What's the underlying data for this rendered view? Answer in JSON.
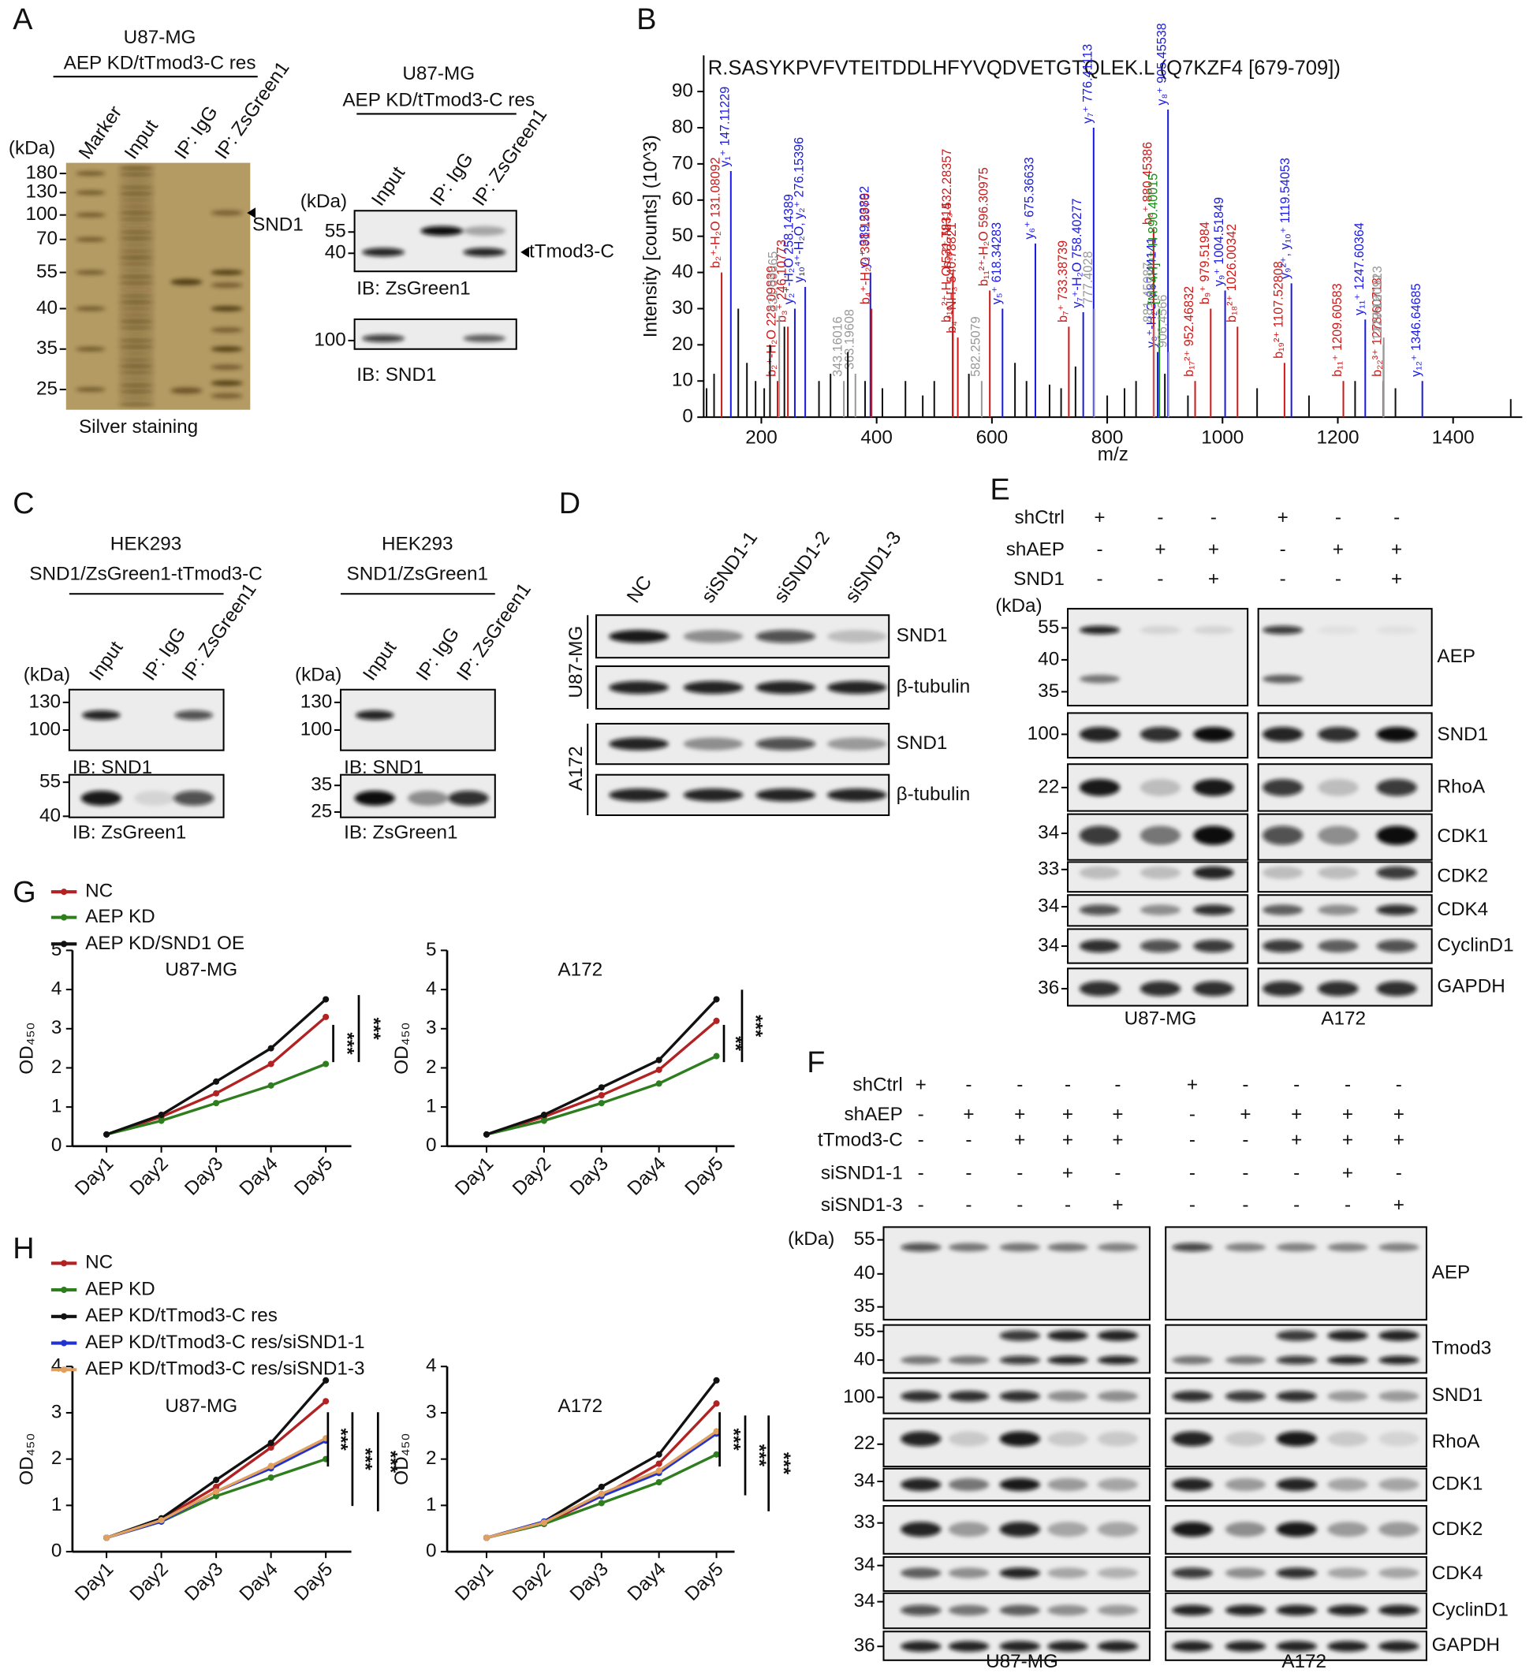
{
  "panels": {
    "A": {
      "label": "A",
      "silver": {
        "cell_line": "U87-MG",
        "condition": "AEP KD/tTmod3-C res",
        "lanes": [
          "Marker",
          "Input",
          "IP: IgG",
          "IP: ZsGreen1"
        ],
        "unit": "(kDa)",
        "markers": [
          180,
          130,
          100,
          70,
          55,
          40,
          35,
          25
        ],
        "band": "SND1",
        "caption": "Silver staining"
      },
      "blot": {
        "cell_line": "U87-MG",
        "condition": "AEP KD/tTmod3-C res",
        "lanes": [
          "Input",
          "IP: IgG",
          "IP: ZsGreen1"
        ],
        "unit": "(kDa)",
        "blots": [
          {
            "markers": [
              55,
              40
            ],
            "band": "tTmod3-C",
            "ib": "IB: ZsGreen1"
          },
          {
            "markers": [
              100
            ],
            "ib": "IB: SND1"
          }
        ]
      }
    },
    "B": {
      "label": "B"
    },
    "C": {
      "label": "C",
      "left": {
        "cell_line": "HEK293",
        "condition": "SND1/ZsGreen1-tTmod3-C",
        "lanes": [
          "Input",
          "IP: IgG",
          "IP: ZsGreen1"
        ],
        "unit": "(kDa)",
        "blots": [
          {
            "markers": [
              130,
              100
            ],
            "ib": "IB: SND1"
          },
          {
            "markers": [
              55,
              40
            ],
            "ib": "IB: ZsGreen1"
          }
        ]
      },
      "right": {
        "cell_line": "HEK293",
        "condition": "SND1/ZsGreen1",
        "lanes": [
          "Input",
          "IP: IgG",
          "IP: ZsGreen1"
        ],
        "unit": "(kDa)",
        "blots": [
          {
            "markers": [
              130,
              100
            ],
            "ib": "IB: SND1"
          },
          {
            "markers": [
              35,
              25
            ],
            "ib": "IB: ZsGreen1"
          }
        ]
      }
    },
    "D": {
      "label": "D",
      "lanes": [
        "NC",
        "siSND1-1",
        "siSND1-2",
        "siSND1-3"
      ],
      "cell_lines": [
        "U87-MG",
        "A172"
      ],
      "rows": [
        "SND1",
        "β-tubulin",
        "SND1",
        "β-tubulin"
      ]
    },
    "E": {
      "label": "E",
      "conditions": [
        {
          "name": "shCtrl",
          "signs": [
            "+",
            "-",
            "-",
            "+",
            "-",
            "-"
          ]
        },
        {
          "name": "shAEP",
          "signs": [
            "-",
            "+",
            "+",
            "-",
            "+",
            "+"
          ]
        },
        {
          "name": "SND1",
          "signs": [
            "-",
            "-",
            "+",
            "-",
            "-",
            "+"
          ]
        }
      ],
      "unit": "(kDa)",
      "rows": [
        {
          "name": "AEP",
          "markers": [
            55,
            40,
            35
          ]
        },
        {
          "name": "SND1",
          "markers": [
            100
          ]
        },
        {
          "name": "RhoA",
          "markers": [
            22
          ]
        },
        {
          "name": "CDK1",
          "markers": [
            34
          ]
        },
        {
          "name": "CDK2",
          "markers": [
            33
          ]
        },
        {
          "name": "CDK4",
          "markers": [
            34
          ]
        },
        {
          "name": "CyclinD1",
          "markers": [
            34
          ]
        },
        {
          "name": "GAPDH",
          "markers": [
            36
          ]
        }
      ],
      "cell_lines": [
        "U87-MG",
        "A172"
      ]
    },
    "F": {
      "label": "F",
      "conditions": [
        {
          "name": "shCtrl",
          "signs": [
            "+",
            "-",
            "-",
            "-",
            "-",
            "+",
            "-",
            "-",
            "-",
            "-"
          ]
        },
        {
          "name": "shAEP",
          "signs": [
            "-",
            "+",
            "+",
            "+",
            "+",
            "-",
            "+",
            "+",
            "+",
            "+"
          ]
        },
        {
          "name": "tTmod3-C",
          "signs": [
            "-",
            "-",
            "+",
            "+",
            "+",
            "-",
            "-",
            "+",
            "+",
            "+"
          ]
        },
        {
          "name": "siSND1-1",
          "signs": [
            "-",
            "-",
            "-",
            "+",
            "-",
            "-",
            "-",
            "-",
            "+",
            "-"
          ]
        },
        {
          "name": "siSND1-3",
          "signs": [
            "-",
            "-",
            "-",
            "-",
            "+",
            "-",
            "-",
            "-",
            "-",
            "+"
          ]
        }
      ],
      "unit": "(kDa)",
      "rows": [
        {
          "name": "AEP",
          "markers": [
            55,
            40,
            35
          ]
        },
        {
          "name": "Tmod3",
          "markers": [
            55,
            40
          ]
        },
        {
          "name": "SND1",
          "markers": [
            100
          ]
        },
        {
          "name": "RhoA",
          "markers": [
            22
          ]
        },
        {
          "name": "CDK1",
          "markers": [
            34
          ]
        },
        {
          "name": "CDK2",
          "markers": [
            33
          ]
        },
        {
          "name": "CDK4",
          "markers": [
            34
          ]
        },
        {
          "name": "CyclinD1",
          "markers": [
            34
          ]
        },
        {
          "name": "GAPDH",
          "markers": [
            36
          ]
        }
      ],
      "cell_lines": [
        "U87-MG",
        "A172"
      ]
    },
    "G": {
      "label": "G"
    },
    "H": {
      "label": "H"
    }
  },
  "chart_data": [
    {
      "type": "stem",
      "title": "R.SASYKPVFVTEITDDLHFYVQDVETGTQLEK.L (Q7KZF4 [679-709])",
      "x_label": "m/z",
      "y_label": "Intensity [counts] (10^3)",
      "xlim": [
        100,
        1520
      ],
      "xticks": [
        200,
        400,
        600,
        800,
        1000,
        1200,
        1400
      ],
      "ylim": [
        0,
        100
      ],
      "yticks": [
        0,
        10,
        20,
        30,
        40,
        50,
        60,
        70,
        80,
        90
      ],
      "series": [
        {
          "color": "#1a1ae0",
          "x": [
            147.11,
            258.14,
            276.15,
            389.24,
            618.34,
            675.37,
            758.4,
            776.41,
            887.44,
            905.46,
            1004.52,
            1119.54,
            1247.6,
            1346.65
          ],
          "values": [
            68,
            30,
            36,
            40,
            30,
            48,
            29,
            80,
            18,
            85,
            35,
            37,
            27,
            10
          ],
          "labels": [
            "y₁⁺ 147.11229",
            "y₂⁺-H₂O 258.14389",
            "y₁₀⁴⁺-H₂O, y₂⁺ 276.15396",
            "y₃⁺ 389.23892",
            "y₅⁺ 618.34283",
            "y₆⁺ 675.36633",
            "y₇⁺-H₂O 758.40277",
            "y₇⁺ 776.41113",
            "y₈⁺-H₂O 887.44141",
            "y₈⁺ 905.45538",
            "y₉⁺ 1004.51849",
            "y₉²⁺, y₁₀⁺ 1119.54053",
            "y₁₁⁺ 1247.60364",
            "y₁₂⁺ 1346.64685"
          ]
        },
        {
          "color": "#cc1a1a",
          "x": [
            131.08,
            228.1,
            246.1,
            391.16,
            531.78,
            532.28,
            540.78,
            596.31,
            733.39,
            880.45,
            952.47,
            979.52,
            1026,
            1107.53,
            1209.61,
            1278.61
          ],
          "values": [
            40,
            10,
            25,
            30,
            25,
            40,
            22,
            35,
            25,
            52,
            10,
            30,
            25,
            15,
            10,
            10
          ],
          "labels": [
            "b₂⁺-H₂O 131.08092",
            "b₂⁺-H₂O 228.09839",
            "b₃⁺ 246.10773",
            "b₄⁺-H₂O 391.15976",
            "b₁₀²⁺-H₂O 531.78314",
            "b₁₀²⁺-NH₃ 532.28357",
            "b₄⁺-NH₃ 540.78821",
            "b₁₁²⁺-H₂O 596.30975",
            "b₇⁺ 733.38739",
            "b₈⁺ 880.45386",
            "b₁₇²⁺ 952.46832",
            "b₉⁺ 979.51984",
            "b₁₈²⁺ 1026.00342",
            "b₁₉²⁺ 1107.52808",
            "b₁₁⁺ 1209.60583",
            "b₂₂³⁺ 1278.60718"
          ]
        },
        {
          "color": "#1a8a1a",
          "x": [
            890.4
          ],
          "values": [
            30
          ],
          "labels": [
            "[M+4H]⁴⁺-H 890.40015"
          ]
        },
        {
          "color": "#999999",
          "x": [
            231.1,
            343.16,
            363.2,
            582.25,
            777.4,
            881.45,
            906.46,
            1279.12,
            1279.61
          ],
          "values": [
            28,
            10,
            12,
            10,
            30,
            25,
            18,
            20,
            22
          ],
          "labels": [
            "231.09665",
            "343.16016",
            "363.19608",
            "582.25079",
            "777.4028",
            "881.45087",
            "906.4566",
            "1279.12012",
            "1279.60913"
          ]
        },
        {
          "color": "#111111",
          "x": [
            105,
            118,
            160,
            175,
            190,
            205,
            215,
            240,
            300,
            320,
            350,
            380,
            410,
            450,
            480,
            500,
            560,
            640,
            660,
            700,
            720,
            745,
            800,
            830,
            850,
            900,
            940,
            1060,
            1150,
            1230,
            1300,
            1500
          ],
          "values": [
            8,
            12,
            30,
            15,
            10,
            8,
            20,
            25,
            10,
            12,
            18,
            10,
            8,
            10,
            6,
            10,
            12,
            15,
            10,
            9,
            8,
            14,
            6,
            8,
            10,
            12,
            6,
            8,
            6,
            10,
            8,
            5
          ]
        }
      ]
    },
    {
      "type": "line",
      "title": "U87-MG",
      "y_label": "OD₄₅₀",
      "categories": [
        "Day1",
        "Day2",
        "Day3",
        "Day4",
        "Day5"
      ],
      "ylim": [
        0,
        5
      ],
      "yticks": [
        0,
        1,
        2,
        3,
        4,
        5
      ],
      "series": [
        {
          "name": "NC",
          "color": "#b22222",
          "values": [
            0.3,
            0.75,
            1.35,
            2.1,
            3.3
          ]
        },
        {
          "name": "AEP KD",
          "color": "#2e7d1e",
          "values": [
            0.3,
            0.65,
            1.1,
            1.55,
            2.1
          ]
        },
        {
          "name": "AEP KD/SND1 OE",
          "color": "#111111",
          "values": [
            0.3,
            0.8,
            1.65,
            2.5,
            3.75
          ]
        }
      ],
      "annotations": [
        "***",
        "***"
      ]
    },
    {
      "type": "line",
      "title": "A172",
      "y_label": "OD₄₅₀",
      "categories": [
        "Day1",
        "Day2",
        "Day3",
        "Day4",
        "Day5"
      ],
      "ylim": [
        0,
        5
      ],
      "yticks": [
        0,
        1,
        2,
        3,
        4,
        5
      ],
      "series": [
        {
          "color": "#b22222",
          "values": [
            0.3,
            0.75,
            1.3,
            1.95,
            3.2
          ]
        },
        {
          "color": "#2e7d1e",
          "values": [
            0.3,
            0.65,
            1.1,
            1.6,
            2.3
          ]
        },
        {
          "color": "#111111",
          "values": [
            0.3,
            0.8,
            1.5,
            2.2,
            3.75
          ]
        }
      ],
      "annotations": [
        "**",
        "***"
      ]
    },
    {
      "type": "line",
      "title": "U87-MG",
      "y_label": "OD₄₅₀",
      "categories": [
        "Day1",
        "Day2",
        "Day3",
        "Day4",
        "Day5"
      ],
      "ylim": [
        0,
        4
      ],
      "yticks": [
        0,
        1,
        2,
        3,
        4
      ],
      "series": [
        {
          "name": "NC",
          "color": "#b22222",
          "values": [
            0.3,
            0.7,
            1.4,
            2.25,
            3.25
          ]
        },
        {
          "name": "AEP KD",
          "color": "#2e7d1e",
          "values": [
            0.3,
            0.65,
            1.2,
            1.6,
            2.0
          ]
        },
        {
          "name": "AEP KD/tTmod3-C res",
          "color": "#111111",
          "values": [
            0.3,
            0.72,
            1.55,
            2.35,
            3.7
          ]
        },
        {
          "name": "AEP KD/tTmod3-C res/siSND1-1",
          "color": "#2233cc",
          "values": [
            0.3,
            0.65,
            1.3,
            1.8,
            2.4
          ]
        },
        {
          "name": "AEP KD/tTmod3-C res/siSND1-3",
          "color": "#e0a060",
          "values": [
            0.3,
            0.68,
            1.3,
            1.85,
            2.45
          ]
        }
      ],
      "annotations": [
        "***",
        "***",
        "***"
      ]
    },
    {
      "type": "line",
      "title": "A172",
      "y_label": "OD₄₅₀",
      "categories": [
        "Day1",
        "Day2",
        "Day3",
        "Day4",
        "Day5"
      ],
      "ylim": [
        0,
        4
      ],
      "yticks": [
        0,
        1,
        2,
        3,
        4
      ],
      "series": [
        {
          "color": "#b22222",
          "values": [
            0.3,
            0.6,
            1.2,
            1.9,
            3.2
          ]
        },
        {
          "color": "#2e7d1e",
          "values": [
            0.3,
            0.6,
            1.05,
            1.5,
            2.1
          ]
        },
        {
          "color": "#111111",
          "values": [
            0.3,
            0.65,
            1.4,
            2.1,
            3.7
          ]
        },
        {
          "color": "#2233cc",
          "values": [
            0.3,
            0.65,
            1.2,
            1.7,
            2.55
          ]
        },
        {
          "color": "#e0a060",
          "values": [
            0.3,
            0.63,
            1.25,
            1.75,
            2.6
          ]
        }
      ],
      "annotations": [
        "***",
        "***",
        "***"
      ]
    }
  ]
}
